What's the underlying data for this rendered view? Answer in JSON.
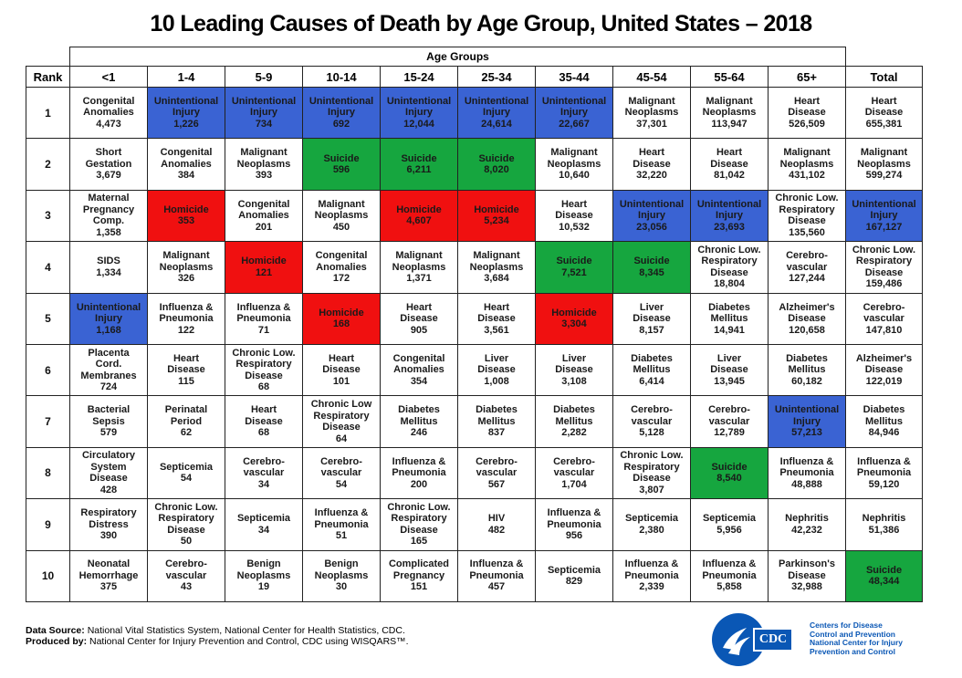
{
  "title": "10 Leading Causes of Death by Age Group, United States – 2018",
  "header": {
    "age_groups_label": "Age Groups",
    "rank_label": "Rank",
    "total_label": "Total",
    "columns": [
      "<1",
      "1-4",
      "5-9",
      "10-14",
      "15-24",
      "25-34",
      "35-44",
      "45-54",
      "55-64",
      "65+"
    ]
  },
  "colors": {
    "blue": "#3a63d3",
    "red": "#f01010",
    "green": "#16a63f"
  },
  "chart_data": {
    "type": "table",
    "title": "10 Leading Causes of Death by Age Group, United States – 2018",
    "columns": [
      "<1",
      "1-4",
      "5-9",
      "10-14",
      "15-24",
      "25-34",
      "35-44",
      "45-54",
      "55-64",
      "65+",
      "Total"
    ],
    "rows": [
      {
        "rank": "1",
        "cells": [
          {
            "cause": "Congenital\nAnomalies",
            "deaths": "4,473",
            "hl": ""
          },
          {
            "cause": "Unintentional\nInjury",
            "deaths": "1,226",
            "hl": "blue"
          },
          {
            "cause": "Unintentional\nInjury",
            "deaths": "734",
            "hl": "blue"
          },
          {
            "cause": "Unintentional\nInjury",
            "deaths": "692",
            "hl": "blue"
          },
          {
            "cause": "Unintentional\nInjury",
            "deaths": "12,044",
            "hl": "blue"
          },
          {
            "cause": "Unintentional\nInjury",
            "deaths": "24,614",
            "hl": "blue"
          },
          {
            "cause": "Unintentional\nInjury",
            "deaths": "22,667",
            "hl": "blue"
          },
          {
            "cause": "Malignant\nNeoplasms",
            "deaths": "37,301",
            "hl": ""
          },
          {
            "cause": "Malignant\nNeoplasms",
            "deaths": "113,947",
            "hl": ""
          },
          {
            "cause": "Heart\nDisease",
            "deaths": "526,509",
            "hl": ""
          },
          {
            "cause": "Heart\nDisease",
            "deaths": "655,381",
            "hl": ""
          }
        ]
      },
      {
        "rank": "2",
        "cells": [
          {
            "cause": "Short\nGestation",
            "deaths": "3,679",
            "hl": ""
          },
          {
            "cause": "Congenital\nAnomalies",
            "deaths": "384",
            "hl": ""
          },
          {
            "cause": "Malignant\nNeoplasms",
            "deaths": "393",
            "hl": ""
          },
          {
            "cause": "Suicide",
            "deaths": "596",
            "hl": "green"
          },
          {
            "cause": "Suicide",
            "deaths": "6,211",
            "hl": "green"
          },
          {
            "cause": "Suicide",
            "deaths": "8,020",
            "hl": "green"
          },
          {
            "cause": "Malignant\nNeoplasms",
            "deaths": "10,640",
            "hl": ""
          },
          {
            "cause": "Heart\nDisease",
            "deaths": "32,220",
            "hl": ""
          },
          {
            "cause": "Heart\nDisease",
            "deaths": "81,042",
            "hl": ""
          },
          {
            "cause": "Malignant\nNeoplasms",
            "deaths": "431,102",
            "hl": ""
          },
          {
            "cause": "Malignant\nNeoplasms",
            "deaths": "599,274",
            "hl": ""
          }
        ]
      },
      {
        "rank": "3",
        "cells": [
          {
            "cause": "Maternal\nPregnancy\nComp.",
            "deaths": "1,358",
            "hl": ""
          },
          {
            "cause": "Homicide",
            "deaths": "353",
            "hl": "red"
          },
          {
            "cause": "Congenital\nAnomalies",
            "deaths": "201",
            "hl": ""
          },
          {
            "cause": "Malignant\nNeoplasms",
            "deaths": "450",
            "hl": ""
          },
          {
            "cause": "Homicide",
            "deaths": "4,607",
            "hl": "red"
          },
          {
            "cause": "Homicide",
            "deaths": "5,234",
            "hl": "red"
          },
          {
            "cause": "Heart\nDisease",
            "deaths": "10,532",
            "hl": ""
          },
          {
            "cause": "Unintentional\nInjury",
            "deaths": "23,056",
            "hl": "blue"
          },
          {
            "cause": "Unintentional\nInjury",
            "deaths": "23,693",
            "hl": "blue"
          },
          {
            "cause": "Chronic Low.\nRespiratory\nDisease",
            "deaths": "135,560",
            "hl": ""
          },
          {
            "cause": "Unintentional\nInjury",
            "deaths": "167,127",
            "hl": "blue"
          }
        ]
      },
      {
        "rank": "4",
        "cells": [
          {
            "cause": "SIDS",
            "deaths": "1,334",
            "hl": ""
          },
          {
            "cause": "Malignant\nNeoplasms",
            "deaths": "326",
            "hl": ""
          },
          {
            "cause": "Homicide",
            "deaths": "121",
            "hl": "red"
          },
          {
            "cause": "Congenital\nAnomalies",
            "deaths": "172",
            "hl": ""
          },
          {
            "cause": "Malignant\nNeoplasms",
            "deaths": "1,371",
            "hl": ""
          },
          {
            "cause": "Malignant\nNeoplasms",
            "deaths": "3,684",
            "hl": ""
          },
          {
            "cause": "Suicide",
            "deaths": "7,521",
            "hl": "green"
          },
          {
            "cause": "Suicide",
            "deaths": "8,345",
            "hl": "green"
          },
          {
            "cause": "Chronic Low.\nRespiratory\nDisease",
            "deaths": "18,804",
            "hl": ""
          },
          {
            "cause": "Cerebro-\nvascular",
            "deaths": "127,244",
            "hl": ""
          },
          {
            "cause": "Chronic Low.\nRespiratory\nDisease",
            "deaths": "159,486",
            "hl": ""
          }
        ]
      },
      {
        "rank": "5",
        "cells": [
          {
            "cause": "Unintentional\nInjury",
            "deaths": "1,168",
            "hl": "blue"
          },
          {
            "cause": "Influenza &\nPneumonia",
            "deaths": "122",
            "hl": ""
          },
          {
            "cause": "Influenza &\nPneumonia",
            "deaths": "71",
            "hl": ""
          },
          {
            "cause": "Homicide",
            "deaths": "168",
            "hl": "red"
          },
          {
            "cause": "Heart\nDisease",
            "deaths": "905",
            "hl": ""
          },
          {
            "cause": "Heart\nDisease",
            "deaths": "3,561",
            "hl": ""
          },
          {
            "cause": "Homicide",
            "deaths": "3,304",
            "hl": "red"
          },
          {
            "cause": "Liver\nDisease",
            "deaths": "8,157",
            "hl": ""
          },
          {
            "cause": "Diabetes\nMellitus",
            "deaths": "14,941",
            "hl": ""
          },
          {
            "cause": "Alzheimer's\nDisease",
            "deaths": "120,658",
            "hl": ""
          },
          {
            "cause": "Cerebro-\nvascular",
            "deaths": "147,810",
            "hl": ""
          }
        ]
      },
      {
        "rank": "6",
        "cells": [
          {
            "cause": "Placenta\nCord.\nMembranes",
            "deaths": "724",
            "hl": ""
          },
          {
            "cause": "Heart\nDisease",
            "deaths": "115",
            "hl": ""
          },
          {
            "cause": "Chronic Low.\nRespiratory\nDisease",
            "deaths": "68",
            "hl": ""
          },
          {
            "cause": "Heart\nDisease",
            "deaths": "101",
            "hl": ""
          },
          {
            "cause": "Congenital\nAnomalies",
            "deaths": "354",
            "hl": ""
          },
          {
            "cause": "Liver\nDisease",
            "deaths": "1,008",
            "hl": ""
          },
          {
            "cause": "Liver\nDisease",
            "deaths": "3,108",
            "hl": ""
          },
          {
            "cause": "Diabetes\nMellitus",
            "deaths": "6,414",
            "hl": ""
          },
          {
            "cause": "Liver\nDisease",
            "deaths": "13,945",
            "hl": ""
          },
          {
            "cause": "Diabetes\nMellitus",
            "deaths": "60,182",
            "hl": ""
          },
          {
            "cause": "Alzheimer's\nDisease",
            "deaths": "122,019",
            "hl": ""
          }
        ]
      },
      {
        "rank": "7",
        "cells": [
          {
            "cause": "Bacterial\nSepsis",
            "deaths": "579",
            "hl": ""
          },
          {
            "cause": "Perinatal\nPeriod",
            "deaths": "62",
            "hl": ""
          },
          {
            "cause": "Heart\nDisease",
            "deaths": "68",
            "hl": ""
          },
          {
            "cause": "Chronic Low\nRespiratory\nDisease",
            "deaths": "64",
            "hl": ""
          },
          {
            "cause": "Diabetes\nMellitus",
            "deaths": "246",
            "hl": ""
          },
          {
            "cause": "Diabetes\nMellitus",
            "deaths": "837",
            "hl": ""
          },
          {
            "cause": "Diabetes\nMellitus",
            "deaths": "2,282",
            "hl": ""
          },
          {
            "cause": "Cerebro-\nvascular",
            "deaths": "5,128",
            "hl": ""
          },
          {
            "cause": "Cerebro-\nvascular",
            "deaths": "12,789",
            "hl": ""
          },
          {
            "cause": "Unintentional\nInjury",
            "deaths": "57,213",
            "hl": "blue"
          },
          {
            "cause": "Diabetes\nMellitus",
            "deaths": "84,946",
            "hl": ""
          }
        ]
      },
      {
        "rank": "8",
        "cells": [
          {
            "cause": "Circulatory\nSystem\nDisease",
            "deaths": "428",
            "hl": ""
          },
          {
            "cause": "Septicemia",
            "deaths": "54",
            "hl": ""
          },
          {
            "cause": "Cerebro-\nvascular",
            "deaths": "34",
            "hl": ""
          },
          {
            "cause": "Cerebro-\nvascular",
            "deaths": "54",
            "hl": ""
          },
          {
            "cause": "Influenza &\nPneumonia",
            "deaths": "200",
            "hl": ""
          },
          {
            "cause": "Cerebro-\nvascular",
            "deaths": "567",
            "hl": ""
          },
          {
            "cause": "Cerebro-\nvascular",
            "deaths": "1,704",
            "hl": ""
          },
          {
            "cause": "Chronic Low.\nRespiratory\nDisease",
            "deaths": "3,807",
            "hl": ""
          },
          {
            "cause": "Suicide",
            "deaths": "8,540",
            "hl": "green"
          },
          {
            "cause": "Influenza &\nPneumonia",
            "deaths": "48,888",
            "hl": ""
          },
          {
            "cause": "Influenza &\nPneumonia",
            "deaths": "59,120",
            "hl": ""
          }
        ]
      },
      {
        "rank": "9",
        "cells": [
          {
            "cause": "Respiratory\nDistress",
            "deaths": "390",
            "hl": ""
          },
          {
            "cause": "Chronic Low.\nRespiratory\nDisease",
            "deaths": "50",
            "hl": ""
          },
          {
            "cause": "Septicemia",
            "deaths": "34",
            "hl": ""
          },
          {
            "cause": "Influenza &\nPneumonia",
            "deaths": "51",
            "hl": ""
          },
          {
            "cause": "Chronic Low.\nRespiratory\nDisease",
            "deaths": "165",
            "hl": ""
          },
          {
            "cause": "HIV",
            "deaths": "482",
            "hl": ""
          },
          {
            "cause": "Influenza &\nPneumonia",
            "deaths": "956",
            "hl": ""
          },
          {
            "cause": "Septicemia",
            "deaths": "2,380",
            "hl": ""
          },
          {
            "cause": "Septicemia",
            "deaths": "5,956",
            "hl": ""
          },
          {
            "cause": "Nephritis",
            "deaths": "42,232",
            "hl": ""
          },
          {
            "cause": "Nephritis",
            "deaths": "51,386",
            "hl": ""
          }
        ]
      },
      {
        "rank": "10",
        "cells": [
          {
            "cause": "Neonatal\nHemorrhage",
            "deaths": "375",
            "hl": ""
          },
          {
            "cause": "Cerebro-\nvascular",
            "deaths": "43",
            "hl": ""
          },
          {
            "cause": "Benign\nNeoplasms",
            "deaths": "19",
            "hl": ""
          },
          {
            "cause": "Benign\nNeoplasms",
            "deaths": "30",
            "hl": ""
          },
          {
            "cause": "Complicated\nPregnancy",
            "deaths": "151",
            "hl": ""
          },
          {
            "cause": "Influenza &\nPneumonia",
            "deaths": "457",
            "hl": ""
          },
          {
            "cause": "Septicemia",
            "deaths": "829",
            "hl": ""
          },
          {
            "cause": "Influenza &\nPneumonia",
            "deaths": "2,339",
            "hl": ""
          },
          {
            "cause": "Influenza &\nPneumonia",
            "deaths": "5,858",
            "hl": ""
          },
          {
            "cause": "Parkinson's\nDisease",
            "deaths": "32,988",
            "hl": ""
          },
          {
            "cause": "Suicide",
            "deaths": "48,344",
            "hl": "green"
          }
        ]
      }
    ]
  },
  "footer": {
    "source_label": "Data Source:",
    "source_text": " National Vital Statistics System, National Center for Health Statistics, CDC.",
    "produced_label": "Produced by:",
    "produced_text": " National Center for Injury Prevention and Control, CDC using WISQARS™."
  },
  "logo": {
    "mark": "CDC",
    "org_lines": [
      "Centers for Disease",
      "Control and Prevention",
      "National Center for Injury",
      "Prevention and Control"
    ]
  }
}
